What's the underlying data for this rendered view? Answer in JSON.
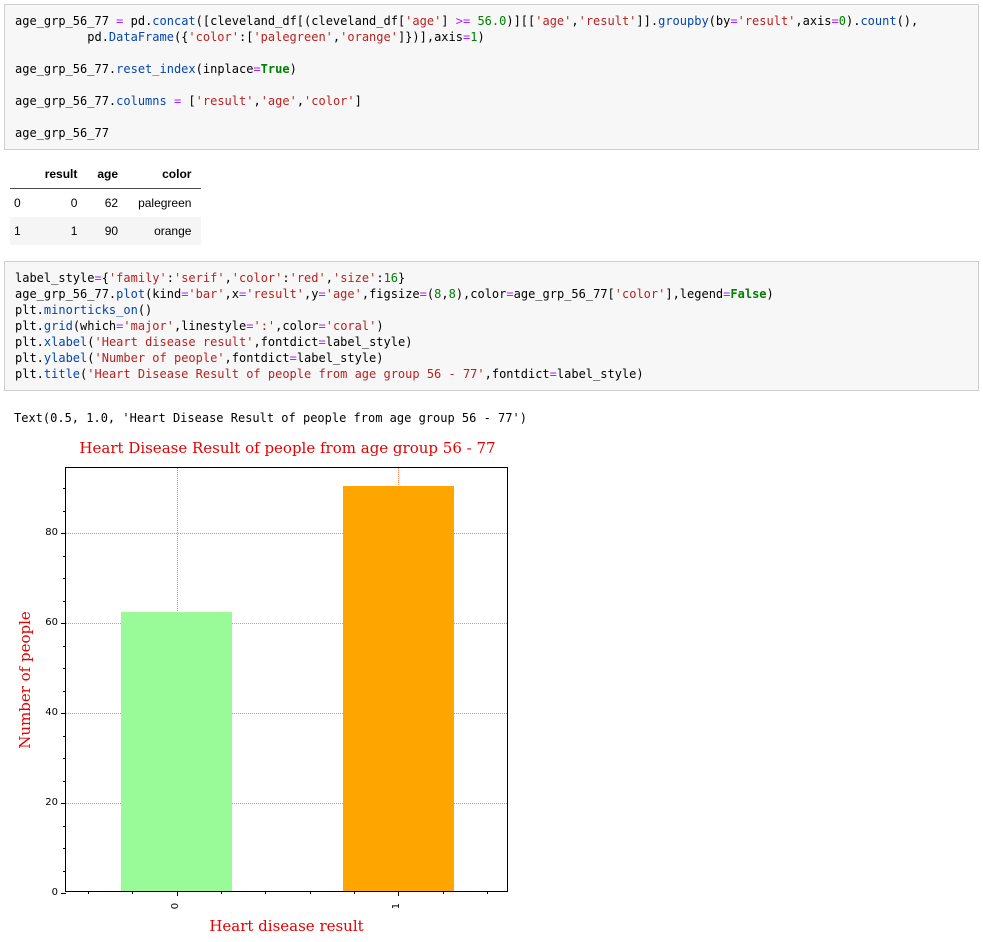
{
  "syntax_colors": {
    "keyword": "#008000",
    "operator": "#AA22FF",
    "string": "#BA2121",
    "number": "#008000",
    "function": "#0645AD",
    "default": "#000000"
  },
  "cells": [
    {
      "name": "code-cell-1",
      "lines": [
        [
          [
            "v",
            "age_grp_56_77 "
          ],
          [
            "o",
            "="
          ],
          [
            "v",
            " pd."
          ],
          [
            "f",
            "concat"
          ],
          [
            "v",
            "([cleveland_df[(cleveland_df["
          ],
          [
            "s",
            "'age'"
          ],
          [
            "v",
            "] "
          ],
          [
            "o",
            ">="
          ],
          [
            "v",
            " "
          ],
          [
            "n",
            "56.0"
          ],
          [
            "v",
            ")][["
          ],
          [
            "s",
            "'age'"
          ],
          [
            "v",
            ","
          ],
          [
            "s",
            "'result'"
          ],
          [
            "v",
            "]]."
          ],
          [
            "f",
            "groupby"
          ],
          [
            "v",
            "(by"
          ],
          [
            "o",
            "="
          ],
          [
            "s",
            "'result'"
          ],
          [
            "v",
            ",axis"
          ],
          [
            "o",
            "="
          ],
          [
            "n",
            "0"
          ],
          [
            "v",
            ")."
          ],
          [
            "f",
            "count"
          ],
          [
            "v",
            "(),"
          ]
        ],
        [
          [
            "v",
            "          pd."
          ],
          [
            "f",
            "DataFrame"
          ],
          [
            "v",
            "({"
          ],
          [
            "s",
            "'color'"
          ],
          [
            "v",
            ":["
          ],
          [
            "s",
            "'palegreen'"
          ],
          [
            "v",
            ","
          ],
          [
            "s",
            "'orange'"
          ],
          [
            "v",
            "]})],axis"
          ],
          [
            "o",
            "="
          ],
          [
            "n",
            "1"
          ],
          [
            "v",
            ")"
          ]
        ],
        [],
        [
          [
            "v",
            "age_grp_56_77."
          ],
          [
            "f",
            "reset_index"
          ],
          [
            "v",
            "(inplace"
          ],
          [
            "o",
            "="
          ],
          [
            "k",
            "True"
          ],
          [
            "v",
            ")"
          ]
        ],
        [],
        [
          [
            "v",
            "age_grp_56_77."
          ],
          [
            "f",
            "columns"
          ],
          [
            "v",
            " "
          ],
          [
            "o",
            "="
          ],
          [
            "v",
            " ["
          ],
          [
            "s",
            "'result'"
          ],
          [
            "v",
            ","
          ],
          [
            "s",
            "'age'"
          ],
          [
            "v",
            ","
          ],
          [
            "s",
            "'color'"
          ],
          [
            "v",
            "]"
          ]
        ],
        [],
        [
          [
            "v",
            "age_grp_56_77"
          ]
        ]
      ]
    },
    {
      "name": "code-cell-2",
      "lines": [
        [
          [
            "v",
            "label_style"
          ],
          [
            "o",
            "="
          ],
          [
            "v",
            "{"
          ],
          [
            "s",
            "'family'"
          ],
          [
            "v",
            ":"
          ],
          [
            "s",
            "'serif'"
          ],
          [
            "v",
            ","
          ],
          [
            "s",
            "'color'"
          ],
          [
            "v",
            ":"
          ],
          [
            "s",
            "'red'"
          ],
          [
            "v",
            ","
          ],
          [
            "s",
            "'size'"
          ],
          [
            "v",
            ":"
          ],
          [
            "n",
            "16"
          ],
          [
            "v",
            "}"
          ]
        ],
        [
          [
            "v",
            "age_grp_56_77."
          ],
          [
            "f",
            "plot"
          ],
          [
            "v",
            "(kind"
          ],
          [
            "o",
            "="
          ],
          [
            "s",
            "'bar'"
          ],
          [
            "v",
            ",x"
          ],
          [
            "o",
            "="
          ],
          [
            "s",
            "'result'"
          ],
          [
            "v",
            ",y"
          ],
          [
            "o",
            "="
          ],
          [
            "s",
            "'age'"
          ],
          [
            "v",
            ",figsize"
          ],
          [
            "o",
            "="
          ],
          [
            "v",
            "("
          ],
          [
            "n",
            "8"
          ],
          [
            "v",
            ","
          ],
          [
            "n",
            "8"
          ],
          [
            "v",
            "),color"
          ],
          [
            "o",
            "="
          ],
          [
            "v",
            "age_grp_56_77["
          ],
          [
            "s",
            "'color'"
          ],
          [
            "v",
            "],legend"
          ],
          [
            "o",
            "="
          ],
          [
            "k",
            "False"
          ],
          [
            "v",
            ")"
          ]
        ],
        [
          [
            "v",
            "plt."
          ],
          [
            "f",
            "minorticks_on"
          ],
          [
            "v",
            "()"
          ]
        ],
        [
          [
            "v",
            "plt."
          ],
          [
            "f",
            "grid"
          ],
          [
            "v",
            "(which"
          ],
          [
            "o",
            "="
          ],
          [
            "s",
            "'major'"
          ],
          [
            "v",
            ",linestyle"
          ],
          [
            "o",
            "="
          ],
          [
            "s",
            "':'"
          ],
          [
            "v",
            ",color"
          ],
          [
            "o",
            "="
          ],
          [
            "s",
            "'coral'"
          ],
          [
            "v",
            ")"
          ]
        ],
        [
          [
            "v",
            "plt."
          ],
          [
            "f",
            "xlabel"
          ],
          [
            "v",
            "("
          ],
          [
            "s",
            "'Heart disease result'"
          ],
          [
            "v",
            ",fontdict"
          ],
          [
            "o",
            "="
          ],
          [
            "v",
            "label_style)"
          ]
        ],
        [
          [
            "v",
            "plt."
          ],
          [
            "f",
            "ylabel"
          ],
          [
            "v",
            "("
          ],
          [
            "s",
            "'Number of people'"
          ],
          [
            "v",
            ",fontdict"
          ],
          [
            "o",
            "="
          ],
          [
            "v",
            "label_style)"
          ]
        ],
        [
          [
            "v",
            "plt."
          ],
          [
            "f",
            "title"
          ],
          [
            "v",
            "("
          ],
          [
            "s",
            "'Heart Disease Result of people from age group 56 - 77'"
          ],
          [
            "v",
            ",fontdict"
          ],
          [
            "o",
            "="
          ],
          [
            "v",
            "label_style)"
          ]
        ]
      ]
    }
  ],
  "dataframe": {
    "columns": [
      "result",
      "age",
      "color"
    ],
    "rows": [
      {
        "index": "0",
        "cells": [
          "0",
          "62",
          "palegreen"
        ]
      },
      {
        "index": "1",
        "cells": [
          "1",
          "90",
          "orange"
        ]
      }
    ]
  },
  "text_output": "Text(0.5, 1.0, 'Heart Disease Result of people from age group 56 - 77')",
  "chart_data": {
    "type": "bar",
    "categories": [
      "0",
      "1"
    ],
    "values": [
      62,
      90
    ],
    "bar_color_names": [
      "palegreen",
      "orange"
    ],
    "bar_colors_hex": [
      "#98FB98",
      "#FFA500"
    ],
    "title": "Heart Disease Result of people from age group 56 - 77",
    "xlabel": "Heart disease result",
    "ylabel": "Number of people",
    "ylim": [
      0,
      94.5
    ],
    "yticks": [
      0,
      20,
      40,
      60,
      80
    ],
    "grid": {
      "which": "major",
      "linestyle": ":",
      "color": "coral",
      "color_hex": "#FF7F50"
    },
    "label_style": {
      "family": "serif",
      "color": "red",
      "color_hex": "#FF0000",
      "size": 16
    },
    "legend": false,
    "xtick_rotation": 90
  }
}
